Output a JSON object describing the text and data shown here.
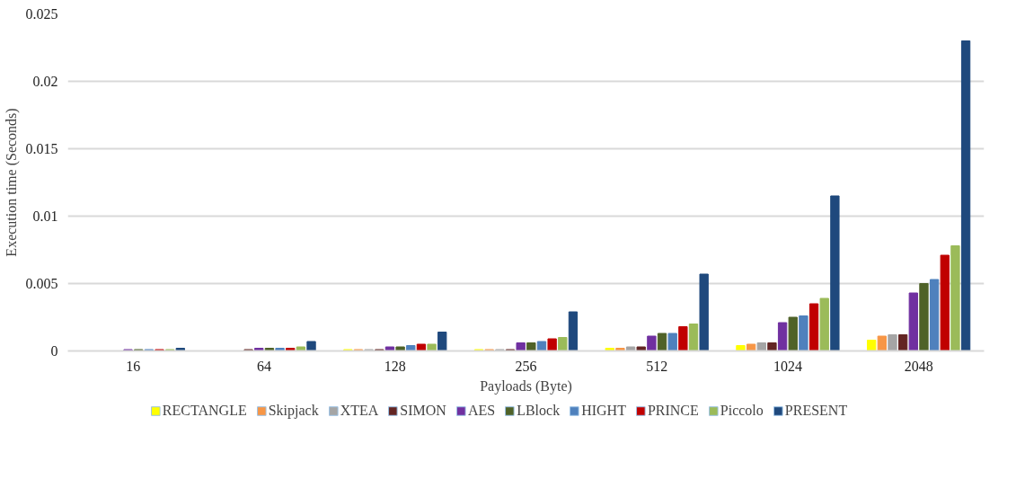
{
  "chart_data": {
    "type": "bar",
    "xlabel": "Payloads (Byte)",
    "ylabel": "Execution time (Seconds)",
    "categories": [
      "16",
      "64",
      "128",
      "256",
      "512",
      "1024",
      "2048"
    ],
    "ylim": [
      0,
      0.025
    ],
    "yticks": [
      0,
      0.005,
      0.01,
      0.015,
      0.02,
      0.025
    ],
    "grid": "y",
    "legend": "bottom",
    "series": [
      {
        "name": "RECTANGLE",
        "color": "#ffff00",
        "values": [
          0,
          0,
          0.0001,
          0.0001,
          0.0002,
          0.0004,
          0.0008
        ]
      },
      {
        "name": "Skipjack",
        "color": "#f79646",
        "values": [
          0,
          0,
          0.0001,
          0.0001,
          0.0002,
          0.0005,
          0.0011
        ]
      },
      {
        "name": "XTEA",
        "color": "#a5a5a5",
        "values": [
          0,
          0,
          0.0001,
          0.0001,
          0.0003,
          0.0006,
          0.0012
        ]
      },
      {
        "name": "SIMON",
        "color": "#632523",
        "values": [
          0,
          0.0001,
          0.0001,
          0.0001,
          0.0003,
          0.0006,
          0.0012
        ]
      },
      {
        "name": "AES",
        "color": "#7030a0",
        "values": [
          0.0001,
          0.0002,
          0.0003,
          0.0006,
          0.0011,
          0.0021,
          0.0043
        ]
      },
      {
        "name": "LBlock",
        "color": "#4f6228",
        "values": [
          0.0001,
          0.0002,
          0.0003,
          0.0006,
          0.0013,
          0.0025,
          0.005
        ]
      },
      {
        "name": "HIGHT",
        "color": "#4f81bd",
        "values": [
          0.0001,
          0.0002,
          0.0004,
          0.0007,
          0.0013,
          0.0026,
          0.0053
        ]
      },
      {
        "name": "PRINCE",
        "color": "#c00000",
        "values": [
          0.0001,
          0.0002,
          0.0005,
          0.0009,
          0.0018,
          0.0035,
          0.0071
        ]
      },
      {
        "name": "Piccolo",
        "color": "#9bbb59",
        "values": [
          0.0001,
          0.0003,
          0.0005,
          0.001,
          0.002,
          0.0039,
          0.0078
        ]
      },
      {
        "name": "PRESENT",
        "color": "#1f497d",
        "values": [
          0.0002,
          0.0007,
          0.0014,
          0.0029,
          0.0057,
          0.0115,
          0.023
        ]
      }
    ]
  }
}
